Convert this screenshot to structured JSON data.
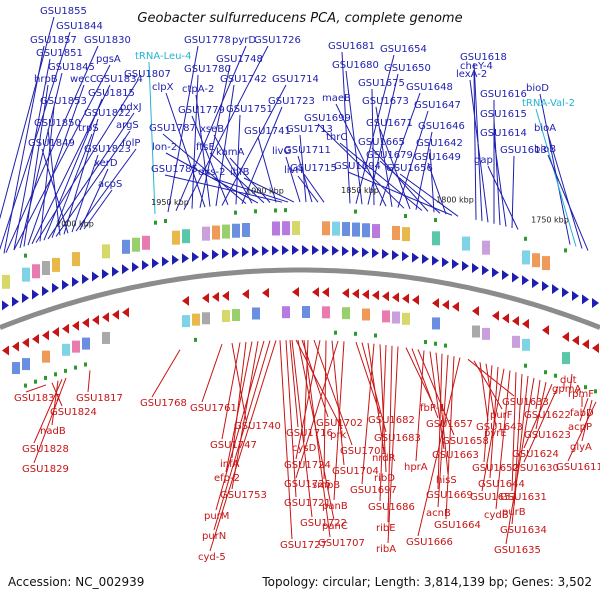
{
  "title": "Geobacter sulfurreducens PCA, complete genome",
  "footer": {
    "accession": "Accession: NC_002939",
    "topology": "Topology: circular; Length: 3,814,139 bp; Genes: 3,502"
  },
  "scale_ticks": [
    "2000 kbp",
    "1950 kbp",
    "1900 kbp",
    "1850 kbp",
    "1800 kbp",
    "1750 kbp"
  ],
  "top_genes": [
    "GSU1855",
    "GSU1844",
    "GSU1857",
    "GSU1830",
    "GSU1851",
    "pgsA",
    "GSU1845",
    "hrpB",
    "wecC",
    "GSU1834",
    "GSU1807",
    "GSU1853",
    "GSU1815",
    "pdxJ",
    "trpS",
    "argS",
    "GSU1850",
    "GSU1822",
    "GSU1849",
    "GSU1823",
    "folP",
    "xerD",
    "acpS",
    "tRNA-Leu-4",
    "GSU1778",
    "pyrD",
    "GSU1726",
    "GSU1780",
    "GSU1748",
    "clpX",
    "ctpA-2",
    "GSU1742",
    "GSU1714",
    "GSU1779",
    "GSU1751",
    "GSU1723",
    "GSU1787",
    "xseB",
    "lon-2",
    "ftsE",
    "kamA",
    "GSU1741",
    "GSU1785",
    "dxs-2",
    "ihfB",
    "livG",
    "GSU1713",
    "GSU1711",
    "livH",
    "GSU1715",
    "GSU1681",
    "GSU1654",
    "GSU1680",
    "GSU1650",
    "GSU1675",
    "GSU1648",
    "maeB",
    "GSU1673",
    "GSU1647",
    "GSU1699",
    "GSU1671",
    "GSU1646",
    "thrC",
    "GSU1665",
    "GSU1642",
    "GSU1679",
    "GSU1649",
    "GSU1694",
    "GSU1656",
    "cheY-4",
    "GSU1618",
    "lexA-2",
    "GSU1616",
    "GSU1615",
    "GSU1614",
    "GSU1613",
    "gap",
    "bioD",
    "tRNA-Val-2",
    "bioA",
    "bioB"
  ],
  "bottom_genes": [
    "GSU1837",
    "GSU1824",
    "nadB",
    "GSU1828",
    "GSU1829",
    "GSU1817",
    "GSU1768",
    "GSU1761",
    "GSU1740",
    "GSU1747",
    "infA",
    "efp-2",
    "GSU1753",
    "purM",
    "purN",
    "cyd-5",
    "GSU1716",
    "prk",
    "GSU1702",
    "cysD",
    "GSU1701",
    "GSU1724",
    "smpB",
    "GSU1704",
    "GSU1725",
    "panB",
    "GSU1721",
    "GSU1722",
    "panC",
    "GSU1727",
    "GSU1707",
    "GSU1682",
    "GSU1683",
    "nrdR",
    "GSU1697",
    "ribD",
    "GSU1686",
    "ribE",
    "ribA",
    "fbP-1",
    "GSU1657",
    "GSU1658",
    "hprA",
    "GSU1663",
    "hisS",
    "GSU1669",
    "acnB",
    "GSU1664",
    "GSU1666",
    "GSU1633",
    "purF",
    "GSU1643",
    "pyrE",
    "GSU1652",
    "GSU1644",
    "GSU1653",
    "cydB",
    "GSU1631",
    "purB",
    "GSU1634",
    "GSU1635",
    "GSU1622",
    "GSU1623",
    "GSU1624",
    "GSU1630",
    "gpmA",
    "dut",
    "rpmF",
    "fabD",
    "acpP",
    "glyA",
    "GSU1611"
  ],
  "colors": {
    "forward": "#1e1eb0",
    "reverse": "#c81414",
    "trna": "#23b4d2",
    "backbone": "#8c8c8c",
    "gc": "#2a9a2a"
  }
}
